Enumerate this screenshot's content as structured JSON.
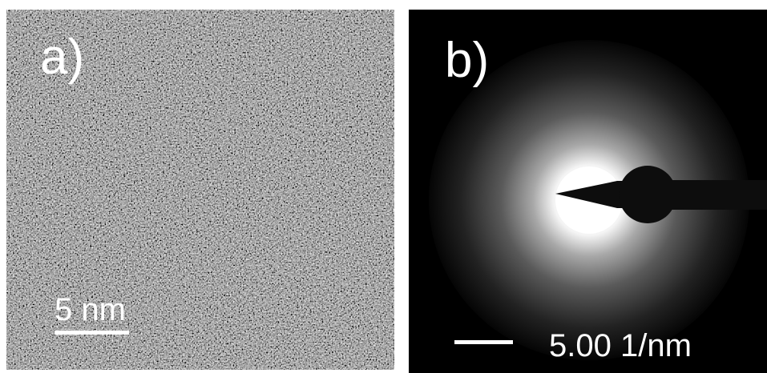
{
  "panels": [
    {
      "label": "a)",
      "scale_bar": "5 nm"
    },
    {
      "label": "b)",
      "scale_bar": "5.00 1/nm"
    }
  ]
}
